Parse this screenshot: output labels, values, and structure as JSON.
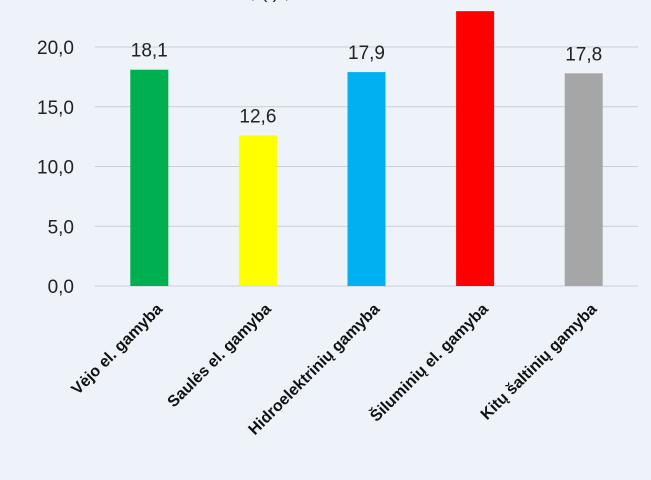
{
  "chart_data": {
    "type": "bar",
    "title_fragment": ", (   ) ,",
    "categories": [
      "Vėjo el. gamyba",
      "Saulės el. gamyba",
      "Hidroelektrinių gamyba",
      "Šiluminių el. gamyba",
      "Kitų šaltinių gamyba"
    ],
    "values": [
      18.1,
      12.6,
      17.9,
      23.0,
      17.8
    ],
    "data_labels": [
      "18,1",
      "12,6",
      "17,9",
      "",
      "17,8"
    ],
    "colors": [
      "#00b050",
      "#ffff00",
      "#00b0f0",
      "#ff0000",
      "#a6a6a6"
    ],
    "yticks": [
      0,
      5,
      10,
      15,
      20
    ],
    "ytick_labels": [
      "0,0",
      "5,0",
      "10,0",
      "15,0",
      "20,0"
    ],
    "ylim": [
      0,
      23
    ],
    "grid": true,
    "legend": "none"
  }
}
